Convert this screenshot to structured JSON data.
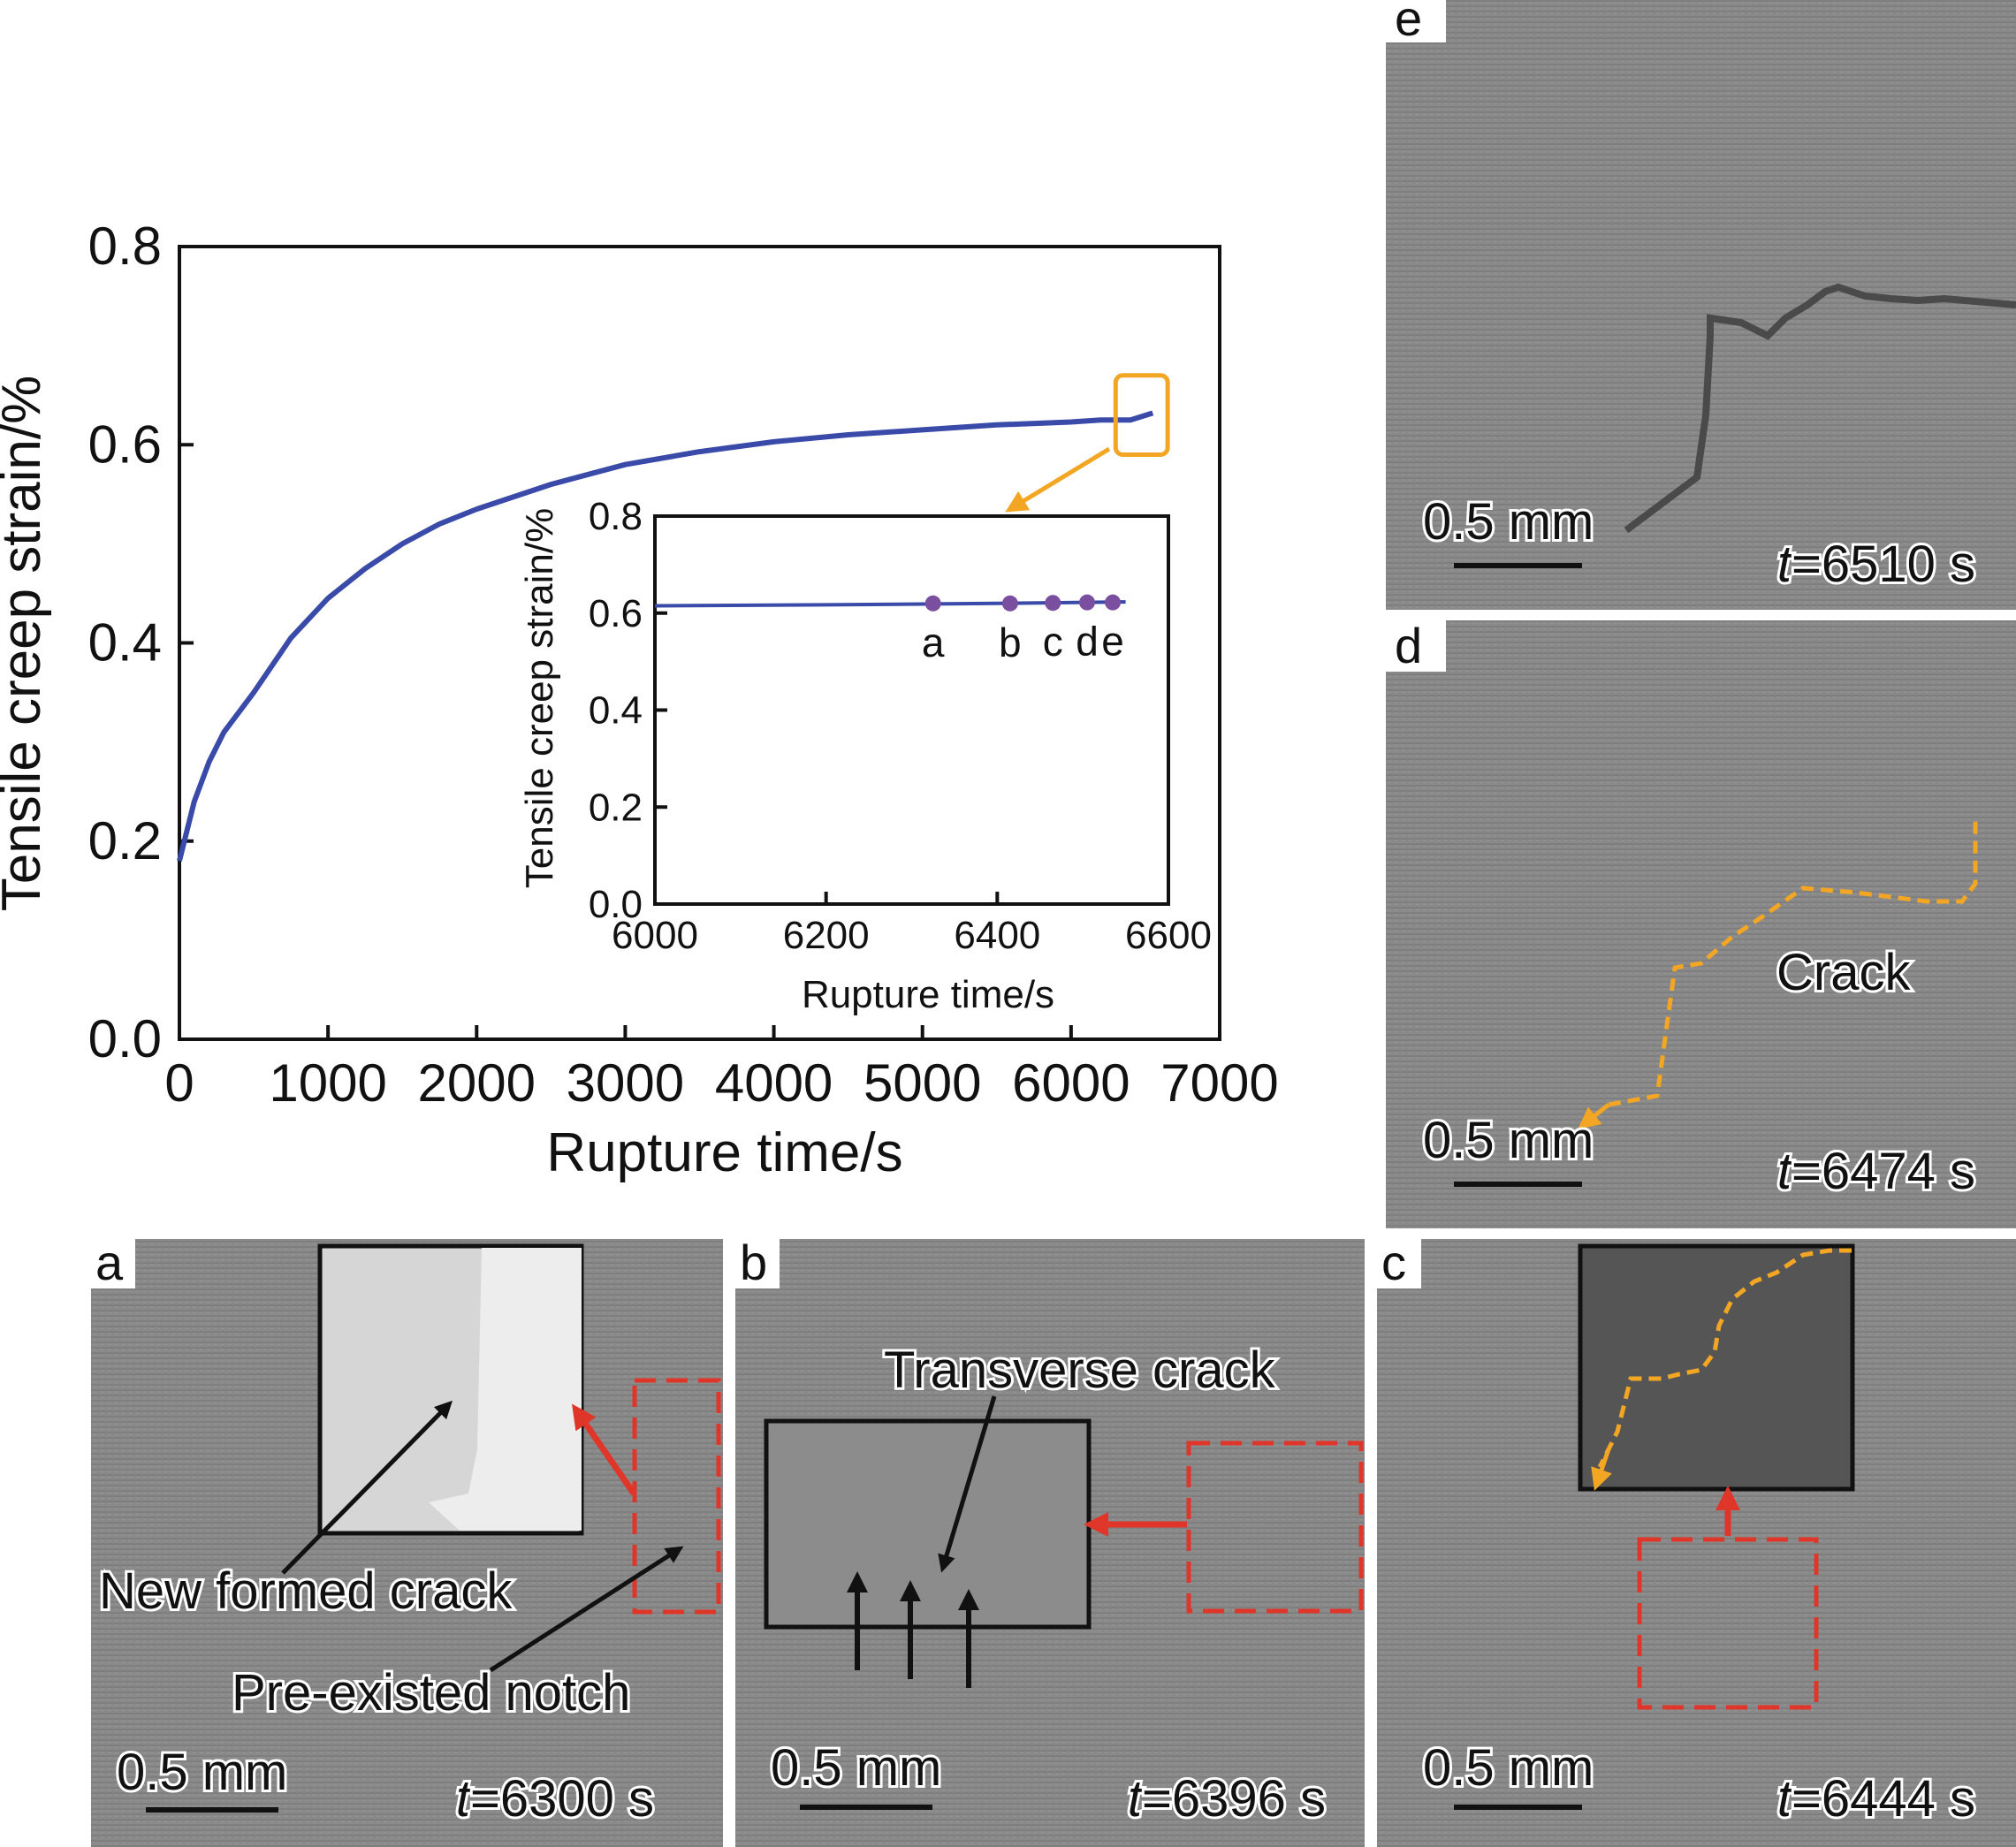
{
  "chart_data": [
    {
      "type": "line",
      "xlabel": "Rupture time/s",
      "ylabel": "Tensile creep strain/%",
      "xlim": [
        0,
        7000
      ],
      "ylim": [
        0,
        0.8
      ],
      "xticks": [
        0,
        1000,
        2000,
        3000,
        4000,
        5000,
        6000,
        7000
      ],
      "xtick_labels": [
        "0",
        "1000",
        "2000",
        "3000",
        "4000",
        "5000",
        "6000",
        "7000"
      ],
      "yticks": [
        0.0,
        0.2,
        0.4,
        0.6,
        0.8
      ],
      "ytick_labels": [
        "0.0",
        "0.2",
        "0.4",
        "0.6",
        "0.8"
      ],
      "grid": false,
      "series": [
        {
          "color": "#3a4aa8",
          "x": [
            0,
            50,
            100,
            200,
            300,
            500,
            750,
            1000,
            1250,
            1500,
            1750,
            2000,
            2500,
            3000,
            3500,
            4000,
            4500,
            5000,
            5500,
            6000,
            6200,
            6400,
            6550
          ],
          "y": [
            0.18,
            0.21,
            0.24,
            0.28,
            0.31,
            0.35,
            0.405,
            0.445,
            0.475,
            0.5,
            0.52,
            0.535,
            0.56,
            0.58,
            0.593,
            0.603,
            0.61,
            0.615,
            0.62,
            0.623,
            0.625,
            0.625,
            0.632
          ]
        }
      ],
      "highlight_box": {
        "x": [
          6300,
          6650
        ],
        "y": [
          0.59,
          0.67
        ],
        "color": "#f2a623"
      }
    },
    {
      "type": "line",
      "xlabel": "Rupture time/s",
      "ylabel": "Tensile creep strain/%",
      "xlim": [
        6000,
        6600
      ],
      "ylim": [
        0,
        0.8
      ],
      "xticks": [
        6000,
        6200,
        6400,
        6600
      ],
      "xtick_labels": [
        "6000",
        "6200",
        "6400",
        "6600"
      ],
      "yticks": [
        0.0,
        0.2,
        0.4,
        0.6,
        0.8
      ],
      "ytick_labels": [
        "0.0",
        "0.2",
        "0.4",
        "0.6",
        "0.8"
      ],
      "grid": false,
      "series": [
        {
          "color": "#3a4aa8",
          "x": [
            6000,
            6200,
            6400,
            6550
          ],
          "y": [
            0.615,
            0.617,
            0.62,
            0.623
          ]
        }
      ],
      "points": [
        {
          "label": "a",
          "x": 6325,
          "y": 0.62,
          "color": "#7b4fa0"
        },
        {
          "label": "b",
          "x": 6415,
          "y": 0.62,
          "color": "#7b4fa0"
        },
        {
          "label": "c",
          "x": 6465,
          "y": 0.621,
          "color": "#7b4fa0"
        },
        {
          "label": "d",
          "x": 6505,
          "y": 0.622,
          "color": "#7b4fa0"
        },
        {
          "label": "e",
          "x": 6535,
          "y": 0.622,
          "color": "#7b4fa0"
        }
      ]
    }
  ],
  "panels": {
    "a": {
      "letter": "a",
      "time": "=6300 s",
      "scale": "0.5 mm",
      "labels": [
        "New formed crack",
        "Pre-existed notch"
      ]
    },
    "b": {
      "letter": "b",
      "time": "=6396 s",
      "scale": "0.5 mm",
      "labels": [
        "Transverse crack"
      ]
    },
    "c": {
      "letter": "c",
      "time": "=6444 s",
      "scale": "0.5 mm"
    },
    "d": {
      "letter": "d",
      "time": "=6474 s",
      "scale": "0.5 mm",
      "labels": [
        "Crack"
      ]
    },
    "e": {
      "letter": "e",
      "time": "=6510 s",
      "scale": "0.5 mm"
    },
    "time_var": "t"
  },
  "colors": {
    "curve": "#3a4aa8",
    "points": "#7b4fa0",
    "highlight": "#f2a623",
    "dashed_box": "#e0362a",
    "crack_trace": "#f2a623"
  }
}
